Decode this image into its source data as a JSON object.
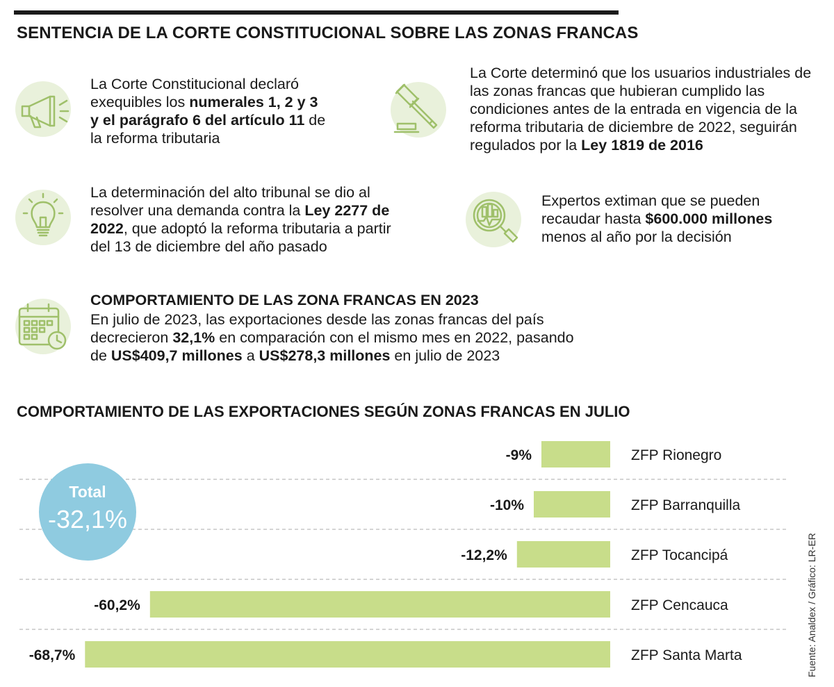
{
  "title": "SENTENCIA DE LA CORTE CONSTITUCIONAL SOBRE LAS ZONAS FRANCAS",
  "blocks": {
    "b1": {
      "icon": "megaphone-icon",
      "pre": "La Corte Constitucional declaró exequibles los ",
      "bold": "numerales 1, 2 y 3 y el parágrafo 6 del artículo 11",
      "post": " de la reforma tributaria"
    },
    "b2": {
      "icon": "gavel-icon",
      "pre": "La Corte determinó que los usuarios industriales de las zonas francas que hubieran cumplido las condiciones antes de la entrada en vigencia de la reforma tributaria de diciembre de 2022, seguirán regulados por la ",
      "bold": "Ley 1819 de 2016"
    },
    "b3": {
      "icon": "lightbulb-icon",
      "pre": "La determinación del alto tribunal se dio al resolver una demanda contra la ",
      "bold": "Ley 2277 de 2022",
      "post": ", que adoptó la reforma tributaria a partir del 13 de diciembre del año pasado"
    },
    "b4": {
      "icon": "magnifier-chart-icon",
      "pre": "Expertos extiman que se pueden recaudar hasta ",
      "bold": "$600.000 millones",
      "post": " menos al año por la decisión"
    },
    "b5": {
      "icon": "calendar-clock-icon",
      "heading": "COMPORTAMIENTO DE LAS ZONA FRANCAS EN 2023",
      "pre": "En julio de 2023, las exportaciones desde las zonas francas del país decrecieron ",
      "bold1": "32,1%",
      "mid1": " en comparación con el mismo mes en 2022, pasando de ",
      "bold2": "US$409,7 millones",
      "mid2": " a ",
      "bold3": "US$278,3 millones",
      "post": " en julio de 2023"
    }
  },
  "chart_data": {
    "type": "bar",
    "title": "COMPORTAMIENTO DE LAS EXPORTACIONES SEGÚN ZONAS FRANCAS EN JULIO",
    "categories": [
      "ZFP Rionegro",
      "ZFP Barranquilla",
      "ZFP Tocancipá",
      "ZFP Cencauca",
      "ZFP Santa Marta"
    ],
    "values": [
      -9,
      -10,
      -12.2,
      -60.2,
      -68.7
    ],
    "value_labels": [
      "-9%",
      "-10%",
      "-12,2%",
      "-60,2%",
      "-68,7%"
    ],
    "orientation": "horizontal",
    "bar_color": "#c8dd8a",
    "total": {
      "label": "Total",
      "value": "-32,1%",
      "color": "#8fcbe0"
    }
  },
  "source": "Fuente: Analdex / Gráfico: LR-ER"
}
